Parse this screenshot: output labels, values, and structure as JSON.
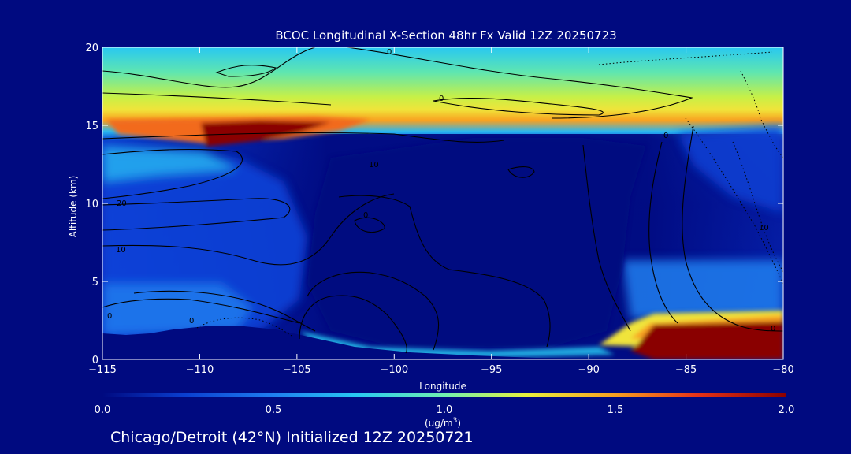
{
  "chart_data": {
    "type": "heatmap",
    "title": "BCOC Longitudinal X-Section 48hr  Fx Valid 12Z 20250723",
    "xlabel": "Longitude",
    "ylabel": "Altitude (km)",
    "xlim": [
      -115,
      -80
    ],
    "ylim": [
      0,
      20
    ],
    "x_ticks": [
      -115,
      -110,
      -105,
      -100,
      -95,
      -90,
      -85,
      -80
    ],
    "x_tick_labels": [
      "−115",
      "−110",
      "−105",
      "−100",
      "−95",
      "−90",
      "−85",
      "−80"
    ],
    "y_ticks": [
      0,
      5,
      10,
      15,
      20
    ],
    "y_tick_labels": [
      "0",
      "5",
      "10",
      "15",
      "20"
    ],
    "colorbar": {
      "range": [
        0.0,
        2.0
      ],
      "ticks": [
        0.0,
        0.5,
        1.0,
        1.5,
        2.0
      ],
      "tick_labels": [
        "0.0",
        "0.5",
        "1.0",
        "1.5",
        "2.0"
      ],
      "units_label": "(ug/m",
      "units_superscript": "3",
      "units_close": ")",
      "colors": [
        "#000a80",
        "#0a3fd0",
        "#1f7ff0",
        "#28c8f2",
        "#70f0b0",
        "#e8f03c",
        "#f8a020",
        "#e63218",
        "#8a0000"
      ]
    },
    "field_features": [
      {
        "name": "upper-layer",
        "lon": [
          -115,
          -80
        ],
        "alt": [
          15.5,
          20
        ],
        "value": 1.0
      },
      {
        "name": "tropopause-max",
        "lon": [
          -110,
          -104
        ],
        "alt": [
          13.5,
          15.5
        ],
        "value": 2.0
      },
      {
        "name": "boundary-layer-max",
        "lon": [
          -88,
          -80
        ],
        "alt": [
          0.5,
          2.2
        ],
        "value": 2.0
      },
      {
        "name": "western-mid-levels",
        "lon": [
          -115,
          -103
        ],
        "alt": [
          2,
          13
        ],
        "value": 0.45
      },
      {
        "name": "central-minimum",
        "lon": [
          -103,
          -86
        ],
        "alt": [
          1,
          14
        ],
        "value": 0.0
      }
    ],
    "contour_labels": [
      "0",
      "0",
      "0",
      "10",
      "10",
      "20",
      "0",
      "0",
      "0",
      "0",
      "10"
    ]
  },
  "footer": "Chicago/Detroit (42°N) Initialized 12Z 20250721"
}
